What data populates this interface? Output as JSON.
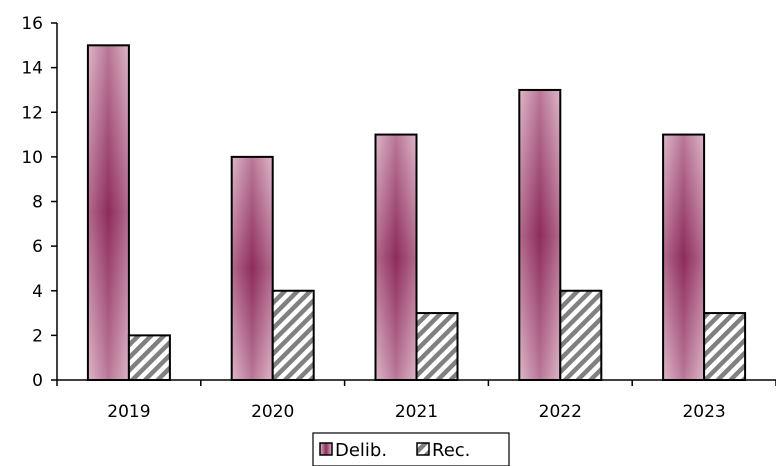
{
  "chart_data": {
    "type": "bar",
    "categories": [
      "2019",
      "2020",
      "2021",
      "2022",
      "2023"
    ],
    "series": [
      {
        "name": "Delib.",
        "values": [
          15,
          10,
          11,
          13,
          11
        ],
        "color": "#c9859f",
        "pattern": "vertical-gradient"
      },
      {
        "name": "Rec.",
        "values": [
          2,
          4,
          3,
          4,
          3
        ],
        "color": "#808080",
        "pattern": "diagonal-stripes"
      }
    ],
    "yticks": [
      "0",
      "2",
      "4",
      "6",
      "8",
      "10",
      "12",
      "14",
      "16"
    ],
    "ylim": [
      0,
      16
    ],
    "grid": false,
    "legend_position": "bottom-center"
  }
}
